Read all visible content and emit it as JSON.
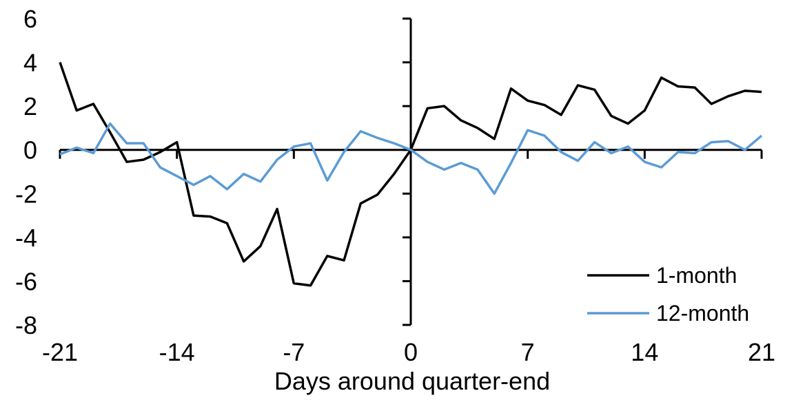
{
  "chart_data": {
    "type": "line",
    "title": "",
    "xlabel": "Days around quarter-end",
    "ylabel": "",
    "xlim": [
      -21,
      21
    ],
    "ylim": [
      -8,
      6
    ],
    "x_ticks": [
      -21,
      -14,
      -7,
      0,
      7,
      14,
      21
    ],
    "y_ticks": [
      6,
      4,
      2,
      0,
      -2,
      -4,
      -6,
      -8
    ],
    "grid": false,
    "legend_position": "inside-lower-right",
    "x": [
      -21,
      -20,
      -19,
      -18,
      -17,
      -16,
      -15,
      -14,
      -13,
      -12,
      -11,
      -10,
      -9,
      -8,
      -7,
      -6,
      -5,
      -4,
      -3,
      -2,
      -1,
      0,
      1,
      2,
      3,
      4,
      5,
      6,
      7,
      8,
      9,
      10,
      11,
      12,
      13,
      14,
      15,
      16,
      17,
      18,
      19,
      20,
      21
    ],
    "series": [
      {
        "name": "1-month",
        "color": "#000000",
        "values": [
          4.0,
          1.8,
          2.1,
          0.8,
          -0.55,
          -0.45,
          -0.1,
          0.35,
          -3.0,
          -3.05,
          -3.35,
          -5.1,
          -4.4,
          -2.7,
          -6.1,
          -6.2,
          -4.85,
          -5.05,
          -2.45,
          -2.05,
          -1.1,
          0,
          1.9,
          2.0,
          1.35,
          1.0,
          0.5,
          2.8,
          2.25,
          2.05,
          1.6,
          2.95,
          2.75,
          1.55,
          1.2,
          1.8,
          3.3,
          2.9,
          2.85,
          2.1,
          2.45,
          2.7,
          2.65
        ]
      },
      {
        "name": "12-month",
        "color": "#5B9BD5",
        "values": [
          -0.2,
          0.1,
          -0.15,
          1.2,
          0.3,
          0.3,
          -0.8,
          -1.2,
          -1.6,
          -1.2,
          -1.8,
          -1.1,
          -1.45,
          -0.45,
          0.15,
          0.3,
          -1.4,
          -0.1,
          0.85,
          0.55,
          0.3,
          0,
          -0.55,
          -0.9,
          -0.6,
          -0.9,
          -2.0,
          -0.6,
          0.9,
          0.65,
          -0.1,
          -0.5,
          0.35,
          -0.15,
          0.15,
          -0.55,
          -0.8,
          -0.1,
          -0.15,
          0.35,
          0.4,
          0.0,
          0.65
        ]
      }
    ]
  }
}
